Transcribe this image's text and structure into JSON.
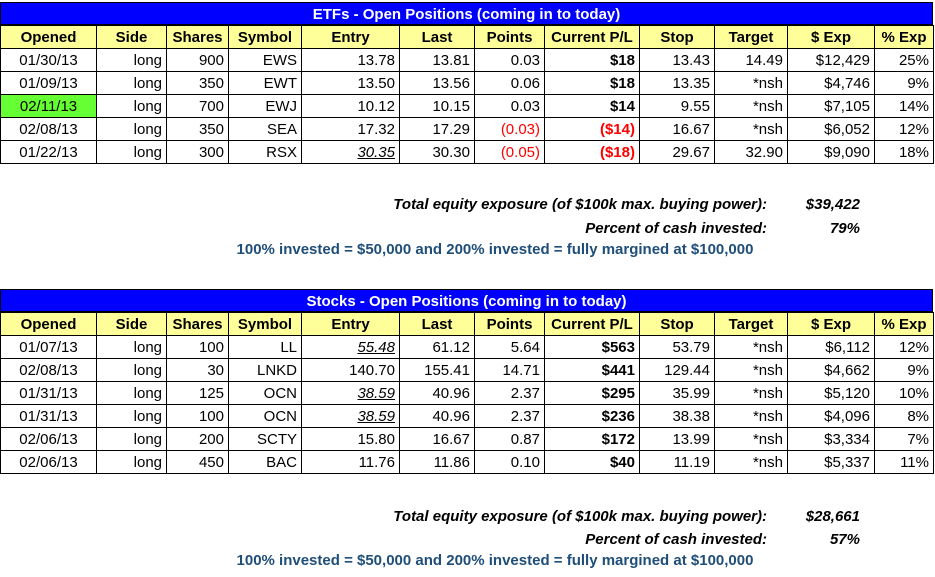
{
  "headers": [
    "Opened",
    "Side",
    "Shares",
    "Symbol",
    "Entry",
    "Last",
    "Points",
    "Current P/L",
    "Stop",
    "Target",
    "$ Exp",
    "% Exp"
  ],
  "etfs": {
    "title": "ETFs - Open Positions (coming in to today)",
    "rows": [
      {
        "opened": "01/30/13",
        "side": "long",
        "shares": "900",
        "symbol": "EWS",
        "entry": "13.78",
        "last": "13.81",
        "points": "0.03",
        "pl": "$18",
        "stop": "13.43",
        "target": "14.49",
        "exp": "$12,429",
        "pexp": "25%"
      },
      {
        "opened": "01/09/13",
        "side": "long",
        "shares": "350",
        "symbol": "EWT",
        "entry": "13.50",
        "last": "13.56",
        "points": "0.06",
        "pl": "$18",
        "stop": "13.35",
        "target": "*nsh",
        "exp": "$4,746",
        "pexp": "9%"
      },
      {
        "opened": "02/11/13",
        "side": "long",
        "shares": "700",
        "symbol": "EWJ",
        "entry": "10.12",
        "last": "10.15",
        "points": "0.03",
        "pl": "$14",
        "stop": "9.55",
        "target": "*nsh",
        "exp": "$7,105",
        "pexp": "14%"
      },
      {
        "opened": "02/08/13",
        "side": "long",
        "shares": "350",
        "symbol": "SEA",
        "entry": "17.32",
        "last": "17.29",
        "points": "(0.03)",
        "pl": "($14)",
        "stop": "16.67",
        "target": "*nsh",
        "exp": "$6,052",
        "pexp": "12%"
      },
      {
        "opened": "01/22/13",
        "side": "long",
        "shares": "300",
        "symbol": "RSX",
        "entry": "30.35",
        "last": "30.30",
        "points": "(0.05)",
        "pl": "($18)",
        "stop": "29.67",
        "target": "32.90",
        "exp": "$9,090",
        "pexp": "18%"
      }
    ],
    "exposure_label": "Total equity exposure (of $100k max. buying power):",
    "exposure_value": "$39,422",
    "cash_label": "Percent of cash invested:",
    "cash_value": "79%",
    "note": "100% invested = $50,000 and 200% invested = fully margined at $100,000"
  },
  "stocks": {
    "title": "Stocks - Open Positions (coming in to today)",
    "rows": [
      {
        "opened": "01/07/13",
        "side": "long",
        "shares": "100",
        "symbol": "LL",
        "entry": "55.48",
        "last": "61.12",
        "points": "5.64",
        "pl": "$563",
        "stop": "53.79",
        "target": "*nsh",
        "exp": "$6,112",
        "pexp": "12%"
      },
      {
        "opened": "02/08/13",
        "side": "long",
        "shares": "30",
        "symbol": "LNKD",
        "entry": "140.70",
        "last": "155.41",
        "points": "14.71",
        "pl": "$441",
        "stop": "129.44",
        "target": "*nsh",
        "exp": "$4,662",
        "pexp": "9%"
      },
      {
        "opened": "01/31/13",
        "side": "long",
        "shares": "125",
        "symbol": "OCN",
        "entry": "38.59",
        "last": "40.96",
        "points": "2.37",
        "pl": "$295",
        "stop": "35.99",
        "target": "*nsh",
        "exp": "$5,120",
        "pexp": "10%"
      },
      {
        "opened": "01/31/13",
        "side": "long",
        "shares": "100",
        "symbol": "OCN",
        "entry": "38.59",
        "last": "40.96",
        "points": "2.37",
        "pl": "$236",
        "stop": "38.38",
        "target": "*nsh",
        "exp": "$4,096",
        "pexp": "8%"
      },
      {
        "opened": "02/06/13",
        "side": "long",
        "shares": "200",
        "symbol": "SCTY",
        "entry": "15.80",
        "last": "16.67",
        "points": "0.87",
        "pl": "$172",
        "stop": "13.99",
        "target": "*nsh",
        "exp": "$3,334",
        "pexp": "7%"
      },
      {
        "opened": "02/06/13",
        "side": "long",
        "shares": "450",
        "symbol": "BAC",
        "entry": "11.76",
        "last": "11.86",
        "points": "0.10",
        "pl": "$40",
        "stop": "11.19",
        "target": "*nsh",
        "exp": "$5,337",
        "pexp": "11%"
      }
    ],
    "exposure_label": "Total equity exposure (of $100k max. buying power):",
    "exposure_value": "$28,661",
    "cash_label": "Percent of cash invested:",
    "cash_value": "57%",
    "note": "100% invested = $50,000 and 200% invested = fully margined at $100,000"
  },
  "colors": {
    "title_bar": "#0000ff",
    "header_bg": "#ffff99",
    "highlight": "#66ff33",
    "negative": "#ff0000",
    "note": "#1f4e79"
  }
}
